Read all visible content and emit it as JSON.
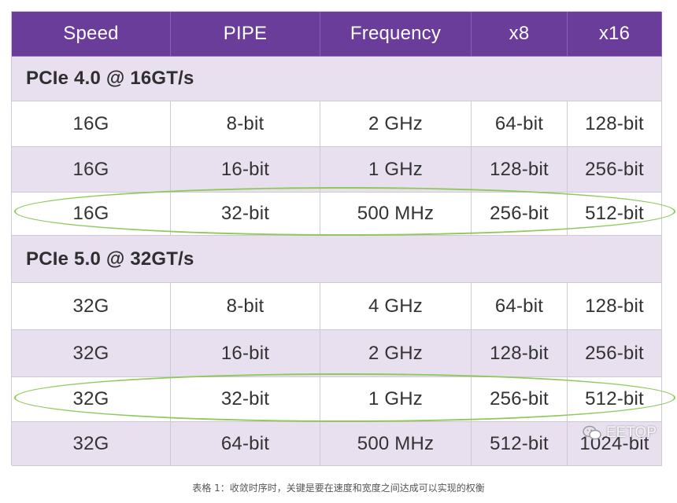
{
  "table": {
    "headers": [
      "Speed",
      "PIPE",
      "Frequency",
      "x8",
      "x16"
    ],
    "sections": [
      {
        "title": "PCIe 4.0 @ 16GT/s",
        "rows": [
          [
            "16G",
            "8-bit",
            "2 GHz",
            "64-bit",
            "128-bit"
          ],
          [
            "16G",
            "16-bit",
            "1 GHz",
            "128-bit",
            "256-bit"
          ],
          [
            "16G",
            "32-bit",
            "500 MHz",
            "256-bit",
            "512-bit"
          ]
        ]
      },
      {
        "title": "PCIe 5.0 @ 32GT/s",
        "rows": [
          [
            "32G",
            "8-bit",
            "4 GHz",
            "64-bit",
            "128-bit"
          ],
          [
            "32G",
            "16-bit",
            "2 GHz",
            "128-bit",
            "256-bit"
          ],
          [
            "32G",
            "32-bit",
            "1 GHz",
            "256-bit",
            "512-bit"
          ],
          [
            "32G",
            "64-bit",
            "500 MHz",
            "512-bit",
            "1024-bit"
          ]
        ]
      }
    ]
  },
  "watermark": "EETOP",
  "caption": "表格 1：收敛时序时，关键是要在速度和宽度之间达成可以实现的权衡",
  "colors": {
    "header_bg": "#6a3d9a",
    "tint_bg": "#e8e0ef",
    "highlight_ellipse": "#8fc95a"
  }
}
